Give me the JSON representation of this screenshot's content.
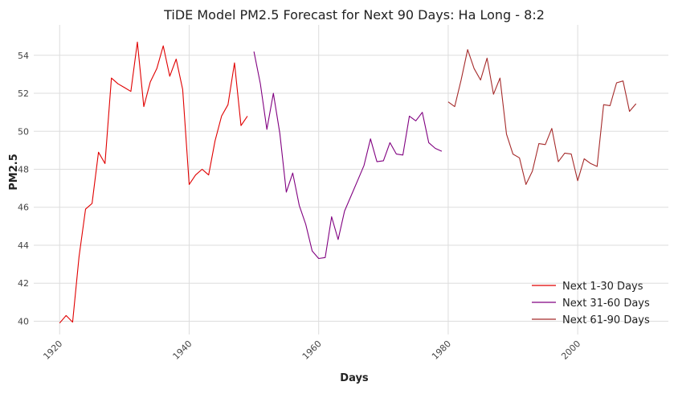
{
  "chart_data": {
    "type": "line",
    "title": "TiDE Model PM2.5 Forecast for Next 90 Days: Ha Long - 8:2",
    "xlabel": "Days",
    "ylabel": "PM2.5",
    "xlim": [
      1916,
      2014
    ],
    "ylim": [
      39.3,
      55.6
    ],
    "grid": true,
    "legend_position": "bottom-right",
    "x_ticks": [
      1920,
      1940,
      1960,
      1980,
      2000
    ],
    "y_ticks": [
      40,
      42,
      44,
      46,
      48,
      50,
      52,
      54
    ],
    "series": [
      {
        "name": "Next 1-30 Days",
        "color": "#e00000",
        "x": [
          1920,
          1921,
          1922,
          1923,
          1924,
          1925,
          1926,
          1927,
          1928,
          1929,
          1930,
          1931,
          1932,
          1933,
          1934,
          1935,
          1936,
          1937,
          1938,
          1939,
          1940,
          1941,
          1942,
          1943,
          1944,
          1945,
          1946,
          1947,
          1948,
          1949
        ],
        "y": [
          39.9,
          40.3,
          39.95,
          43.4,
          45.9,
          46.2,
          48.9,
          48.3,
          52.8,
          52.5,
          52.3,
          52.1,
          54.7,
          51.3,
          52.6,
          53.3,
          54.5,
          52.9,
          53.8,
          52.2,
          47.2,
          47.7,
          48.0,
          47.7,
          49.5,
          50.8,
          51.4,
          53.6,
          50.3,
          50.8
        ]
      },
      {
        "name": "Next 31-60 Days",
        "color": "#800080",
        "x": [
          1950,
          1951,
          1952,
          1953,
          1954,
          1955,
          1956,
          1957,
          1958,
          1959,
          1960,
          1961,
          1962,
          1963,
          1964,
          1965,
          1966,
          1967,
          1968,
          1969,
          1970,
          1971,
          1972,
          1973,
          1974,
          1975,
          1976,
          1977,
          1978,
          1979
        ],
        "y": [
          54.2,
          52.5,
          50.1,
          52.0,
          49.9,
          46.8,
          47.8,
          46.1,
          45.1,
          43.7,
          43.3,
          43.35,
          45.5,
          44.3,
          45.8,
          46.6,
          47.4,
          48.2,
          49.6,
          48.4,
          48.45,
          49.4,
          48.8,
          48.75,
          50.8,
          50.55,
          51.0,
          49.4,
          49.1,
          48.95
        ]
      },
      {
        "name": "Next 61-90 Days",
        "color": "#a52a2a",
        "x": [
          1980,
          1981,
          1982,
          1983,
          1984,
          1985,
          1986,
          1987,
          1988,
          1989,
          1990,
          1991,
          1992,
          1993,
          1994,
          1995,
          1996,
          1997,
          1998,
          1999,
          2000,
          2001,
          2002,
          2003,
          2004,
          2005,
          2006,
          2007,
          2008,
          2009
        ],
        "y": [
          51.55,
          51.3,
          52.7,
          54.3,
          53.3,
          52.7,
          53.85,
          51.95,
          52.8,
          49.85,
          48.8,
          48.6,
          47.2,
          47.9,
          49.35,
          49.3,
          50.15,
          48.4,
          48.85,
          48.8,
          47.4,
          48.55,
          48.3,
          48.15,
          51.4,
          51.35,
          52.55,
          52.65,
          51.05,
          51.45
        ]
      }
    ]
  }
}
